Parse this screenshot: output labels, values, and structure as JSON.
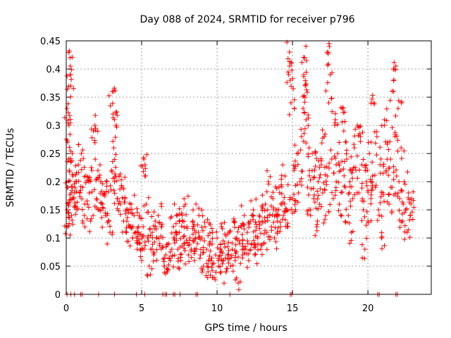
{
  "chart_data": {
    "type": "scatter",
    "title": "Day 088 of 2024, SRMTID for receiver p796",
    "xlabel": "GPS time / hours",
    "ylabel": "SRMTID / TECUs",
    "xlim": [
      0,
      24.2
    ],
    "ylim": [
      0,
      0.45
    ],
    "grid": true,
    "marker": "+",
    "series_color": "#ff0000",
    "x_ticks": [
      0,
      5,
      10,
      15,
      20
    ],
    "x_tick_labels": [
      "0",
      "5",
      "10",
      "15",
      "20"
    ],
    "y_ticks": [
      0,
      0.05,
      0.1,
      0.15,
      0.2,
      0.25,
      0.3,
      0.35,
      0.4,
      0.45
    ],
    "y_tick_labels": [
      "0",
      "0.05",
      "0.1",
      "0.15",
      "0.2",
      "0.25",
      "0.3",
      "0.35",
      "0.4",
      "0.45"
    ],
    "series": [
      {
        "name": "SRMTID",
        "points": [
          [
            0.05,
            0.33
          ],
          [
            0.05,
            0.15
          ],
          [
            0.08,
            0.12
          ],
          [
            0.1,
            0.27
          ],
          [
            0.12,
            0.19
          ],
          [
            0.15,
            0.16
          ],
          [
            0.18,
            0.3
          ],
          [
            0.2,
            0.22
          ],
          [
            0.25,
            0.42
          ],
          [
            0.28,
            0.39
          ],
          [
            0.3,
            0.37
          ],
          [
            0.32,
            0.18
          ],
          [
            0.35,
            0.14
          ],
          [
            0.4,
            0.25
          ],
          [
            0.45,
            0.21
          ],
          [
            0.5,
            0.17
          ],
          [
            0.6,
            0.2
          ],
          [
            0.7,
            0.15
          ],
          [
            0.8,
            0.23
          ],
          [
            0.9,
            0.18
          ],
          [
            1.0,
            0.25
          ],
          [
            1.1,
            0.19
          ],
          [
            1.2,
            0.14
          ],
          [
            1.3,
            0.21
          ],
          [
            1.4,
            0.16
          ],
          [
            1.5,
            0.2
          ],
          [
            1.6,
            0.13
          ],
          [
            1.7,
            0.22
          ],
          [
            1.8,
            0.29
          ],
          [
            1.9,
            0.3
          ],
          [
            2.0,
            0.17
          ],
          [
            2.1,
            0.22
          ],
          [
            2.2,
            0.15
          ],
          [
            2.3,
            0.2
          ],
          [
            2.4,
            0.16
          ],
          [
            2.5,
            0.18
          ],
          [
            2.6,
            0.14
          ],
          [
            2.7,
            0.2
          ],
          [
            2.8,
            0.13
          ],
          [
            2.9,
            0.11
          ],
          [
            3.0,
            0.22
          ],
          [
            3.05,
            0.36
          ],
          [
            3.1,
            0.32
          ],
          [
            3.15,
            0.26
          ],
          [
            3.2,
            0.2
          ],
          [
            3.3,
            0.3
          ],
          [
            3.4,
            0.17
          ],
          [
            3.5,
            0.21
          ],
          [
            3.6,
            0.16
          ],
          [
            3.7,
            0.19
          ],
          [
            3.8,
            0.13
          ],
          [
            3.9,
            0.17
          ],
          [
            4.0,
            0.11
          ],
          [
            4.1,
            0.15
          ],
          [
            4.2,
            0.12
          ],
          [
            4.3,
            0.16
          ],
          [
            4.4,
            0.1
          ],
          [
            4.5,
            0.14
          ],
          [
            4.6,
            0.11
          ],
          [
            4.7,
            0.08
          ],
          [
            4.8,
            0.12
          ],
          [
            4.9,
            0.09
          ],
          [
            5.0,
            0.06
          ],
          [
            5.1,
            0.12
          ],
          [
            5.15,
            0.24
          ],
          [
            5.2,
            0.21
          ],
          [
            5.3,
            0.16
          ],
          [
            5.4,
            0.1
          ],
          [
            5.5,
            0.05
          ],
          [
            5.6,
            0.08
          ],
          [
            5.7,
            0.11
          ],
          [
            5.8,
            0.07
          ],
          [
            5.9,
            0.13
          ],
          [
            6.0,
            0.1
          ],
          [
            6.1,
            0.14
          ],
          [
            6.2,
            0.09
          ],
          [
            6.3,
            0.12
          ],
          [
            6.5,
            0.05
          ],
          [
            6.6,
            0.07
          ],
          [
            6.7,
            0.04
          ],
          [
            6.8,
            0.09
          ],
          [
            6.9,
            0.06
          ],
          [
            7.0,
            0.08
          ],
          [
            7.1,
            0.12
          ],
          [
            7.2,
            0.1
          ],
          [
            7.3,
            0.14
          ],
          [
            7.4,
            0.08
          ],
          [
            7.5,
            0.11
          ],
          [
            7.6,
            0.06
          ],
          [
            7.7,
            0.13
          ],
          [
            7.8,
            0.09
          ],
          [
            7.9,
            0.16
          ],
          [
            8.0,
            0.12
          ],
          [
            8.1,
            0.07
          ],
          [
            8.2,
            0.1
          ],
          [
            8.3,
            0.08
          ],
          [
            8.4,
            0.13
          ],
          [
            8.5,
            0.06
          ],
          [
            8.6,
            0.11
          ],
          [
            8.7,
            0.09
          ],
          [
            8.8,
            0.14
          ],
          [
            8.9,
            0.07
          ],
          [
            9.0,
            0.1
          ],
          [
            9.1,
            0.05
          ],
          [
            9.2,
            0.12
          ],
          [
            9.3,
            0.08
          ],
          [
            9.4,
            0.04
          ],
          [
            9.5,
            0.09
          ],
          [
            9.6,
            0.06
          ],
          [
            9.7,
            0.11
          ],
          [
            9.8,
            0.03
          ],
          [
            9.9,
            0.07
          ],
          [
            10.0,
            0.1
          ],
          [
            10.1,
            0.05
          ],
          [
            10.2,
            0.08
          ],
          [
            10.3,
            0.12
          ],
          [
            10.4,
            0.06
          ],
          [
            10.5,
            0.09
          ],
          [
            10.6,
            0.04
          ],
          [
            10.7,
            0.07
          ],
          [
            10.8,
            0.11
          ],
          [
            10.9,
            0.05
          ],
          [
            11.0,
            0.08
          ],
          [
            11.1,
            0.13
          ],
          [
            11.2,
            0.06
          ],
          [
            11.3,
            0.1
          ],
          [
            11.4,
            0.02
          ],
          [
            11.5,
            0.09
          ],
          [
            11.6,
            0.12
          ],
          [
            11.7,
            0.07
          ],
          [
            11.8,
            0.14
          ],
          [
            11.9,
            0.08
          ],
          [
            12.0,
            0.11
          ],
          [
            12.1,
            0.06
          ],
          [
            12.2,
            0.13
          ],
          [
            12.3,
            0.09
          ],
          [
            12.4,
            0.15
          ],
          [
            12.5,
            0.07
          ],
          [
            12.6,
            0.12
          ],
          [
            12.7,
            0.1
          ],
          [
            12.8,
            0.14
          ],
          [
            12.9,
            0.08
          ],
          [
            13.0,
            0.13
          ],
          [
            13.1,
            0.09
          ],
          [
            13.2,
            0.16
          ],
          [
            13.3,
            0.11
          ],
          [
            13.4,
            0.2
          ],
          [
            13.5,
            0.14
          ],
          [
            13.6,
            0.12
          ],
          [
            13.7,
            0.17
          ],
          [
            13.8,
            0.1
          ],
          [
            13.9,
            0.15
          ],
          [
            14.0,
            0.13
          ],
          [
            14.1,
            0.19
          ],
          [
            14.2,
            0.12
          ],
          [
            14.3,
            0.16
          ],
          [
            14.4,
            0.14
          ],
          [
            14.5,
            0.21
          ],
          [
            14.6,
            0.15
          ],
          [
            14.7,
            0.12
          ],
          [
            14.75,
            0.39
          ],
          [
            14.8,
            0.43
          ],
          [
            14.85,
            0.38
          ],
          [
            14.9,
            0.34
          ],
          [
            15.0,
            0.17
          ],
          [
            15.1,
            0.22
          ],
          [
            15.2,
            0.15
          ],
          [
            15.3,
            0.25
          ],
          [
            15.4,
            0.18
          ],
          [
            15.5,
            0.2
          ],
          [
            15.6,
            0.28
          ],
          [
            15.7,
            0.33
          ],
          [
            15.75,
            0.39
          ],
          [
            15.8,
            0.42
          ],
          [
            15.85,
            0.37
          ],
          [
            15.9,
            0.31
          ],
          [
            16.0,
            0.19
          ],
          [
            16.1,
            0.26
          ],
          [
            16.2,
            0.14
          ],
          [
            16.3,
            0.22
          ],
          [
            16.4,
            0.17
          ],
          [
            16.5,
            0.25
          ],
          [
            16.6,
            0.12
          ],
          [
            16.7,
            0.2
          ],
          [
            16.8,
            0.16
          ],
          [
            16.9,
            0.23
          ],
          [
            17.0,
            0.18
          ],
          [
            17.1,
            0.28
          ],
          [
            17.2,
            0.14
          ],
          [
            17.3,
            0.21
          ],
          [
            17.4,
            0.34
          ],
          [
            17.45,
            0.44
          ],
          [
            17.5,
            0.39
          ],
          [
            17.6,
            0.24
          ],
          [
            17.7,
            0.17
          ],
          [
            17.8,
            0.3
          ],
          [
            17.9,
            0.2
          ],
          [
            18.0,
            0.25
          ],
          [
            18.1,
            0.16
          ],
          [
            18.2,
            0.22
          ],
          [
            18.3,
            0.33
          ],
          [
            18.4,
            0.29
          ],
          [
            18.5,
            0.19
          ],
          [
            18.6,
            0.24
          ],
          [
            18.7,
            0.14
          ],
          [
            18.8,
            0.2
          ],
          [
            18.9,
            0.11
          ],
          [
            19.0,
            0.17
          ],
          [
            19.1,
            0.26
          ],
          [
            19.2,
            0.22
          ],
          [
            19.3,
            0.3
          ],
          [
            19.4,
            0.18
          ],
          [
            19.5,
            0.28
          ],
          [
            19.6,
            0.23
          ],
          [
            19.7,
            0.15
          ],
          [
            19.8,
            0.08
          ],
          [
            19.9,
            0.2
          ],
          [
            20.0,
            0.13
          ],
          [
            20.1,
            0.25
          ],
          [
            20.2,
            0.17
          ],
          [
            20.3,
            0.21
          ],
          [
            20.4,
            0.34
          ],
          [
            20.5,
            0.19
          ],
          [
            20.6,
            0.28
          ],
          [
            20.7,
            0.15
          ],
          [
            20.8,
            0.23
          ],
          [
            20.9,
            0.1
          ],
          [
            21.0,
            0.18
          ],
          [
            21.1,
            0.31
          ],
          [
            21.2,
            0.22
          ],
          [
            21.3,
            0.27
          ],
          [
            21.4,
            0.16
          ],
          [
            21.5,
            0.24
          ],
          [
            21.6,
            0.19
          ],
          [
            21.7,
            0.36
          ],
          [
            21.75,
            0.4
          ],
          [
            21.8,
            0.28
          ],
          [
            21.9,
            0.21
          ],
          [
            22.0,
            0.33
          ],
          [
            22.1,
            0.17
          ],
          [
            22.2,
            0.26
          ],
          [
            22.3,
            0.13
          ],
          [
            22.4,
            0.2
          ],
          [
            22.5,
            0.15
          ],
          [
            22.6,
            0.11
          ],
          [
            22.7,
            0.18
          ],
          [
            22.8,
            0.14
          ],
          [
            22.9,
            0.17
          ]
        ],
        "zero_points": [
          0.05,
          0.3,
          0.55,
          0.95,
          1.05,
          2.15,
          3.2,
          4.65,
          5.2,
          6.4,
          6.55,
          6.65,
          7.1,
          7.2,
          7.55,
          8.6,
          8.7,
          10.85,
          14.85,
          14.95,
          20.65,
          20.75,
          21.85,
          21.95
        ]
      }
    ]
  }
}
